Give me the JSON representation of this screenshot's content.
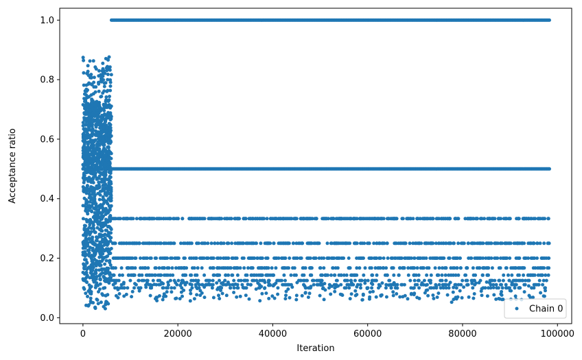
{
  "chart_data": {
    "type": "scatter",
    "title": "",
    "xlabel": "Iteration",
    "ylabel": "Acceptance ratio",
    "xlim": [
      -4900,
      103000
    ],
    "ylim": [
      -0.02,
      1.04
    ],
    "xticks": [
      0,
      20000,
      40000,
      60000,
      80000,
      100000
    ],
    "xtick_labels": [
      "0",
      "20000",
      "40000",
      "60000",
      "80000",
      "100000"
    ],
    "yticks": [
      0.0,
      0.2,
      0.4,
      0.6,
      0.8,
      1.0
    ],
    "ytick_labels": [
      "0.0",
      "0.2",
      "0.4",
      "0.6",
      "0.8",
      "1.0"
    ],
    "grid": false,
    "legend_position": "lower-right",
    "color": "#1f77b4",
    "series": [
      {
        "name": "Chain 0",
        "x_range": [
          0,
          98300
        ],
        "burn_in_end": 6000,
        "burn_in_y_range": [
          0.03,
          0.89
        ],
        "levels": [
          {
            "y": 1.0,
            "x_range": [
              6000,
              98300
            ]
          },
          {
            "y": 0.5,
            "x_range": [
              0,
              98300
            ]
          },
          {
            "y": 0.333,
            "x_range": [
              6000,
              98300
            ]
          },
          {
            "y": 0.25,
            "x_range": [
              6000,
              98300
            ]
          },
          {
            "y": 0.2,
            "x_range": [
              6000,
              98300
            ]
          },
          {
            "y": 0.167,
            "x_range": [
              6000,
              98300
            ]
          },
          {
            "y": 0.143,
            "x_range": [
              6000,
              98300
            ]
          },
          {
            "y": 0.125,
            "x_range": [
              6000,
              98300
            ]
          },
          {
            "y": 0.111,
            "x_range": [
              6000,
              98300
            ]
          },
          {
            "y": 0.1,
            "x_range": [
              6000,
              98300
            ]
          }
        ],
        "tail_min_y": 0.03
      }
    ]
  }
}
